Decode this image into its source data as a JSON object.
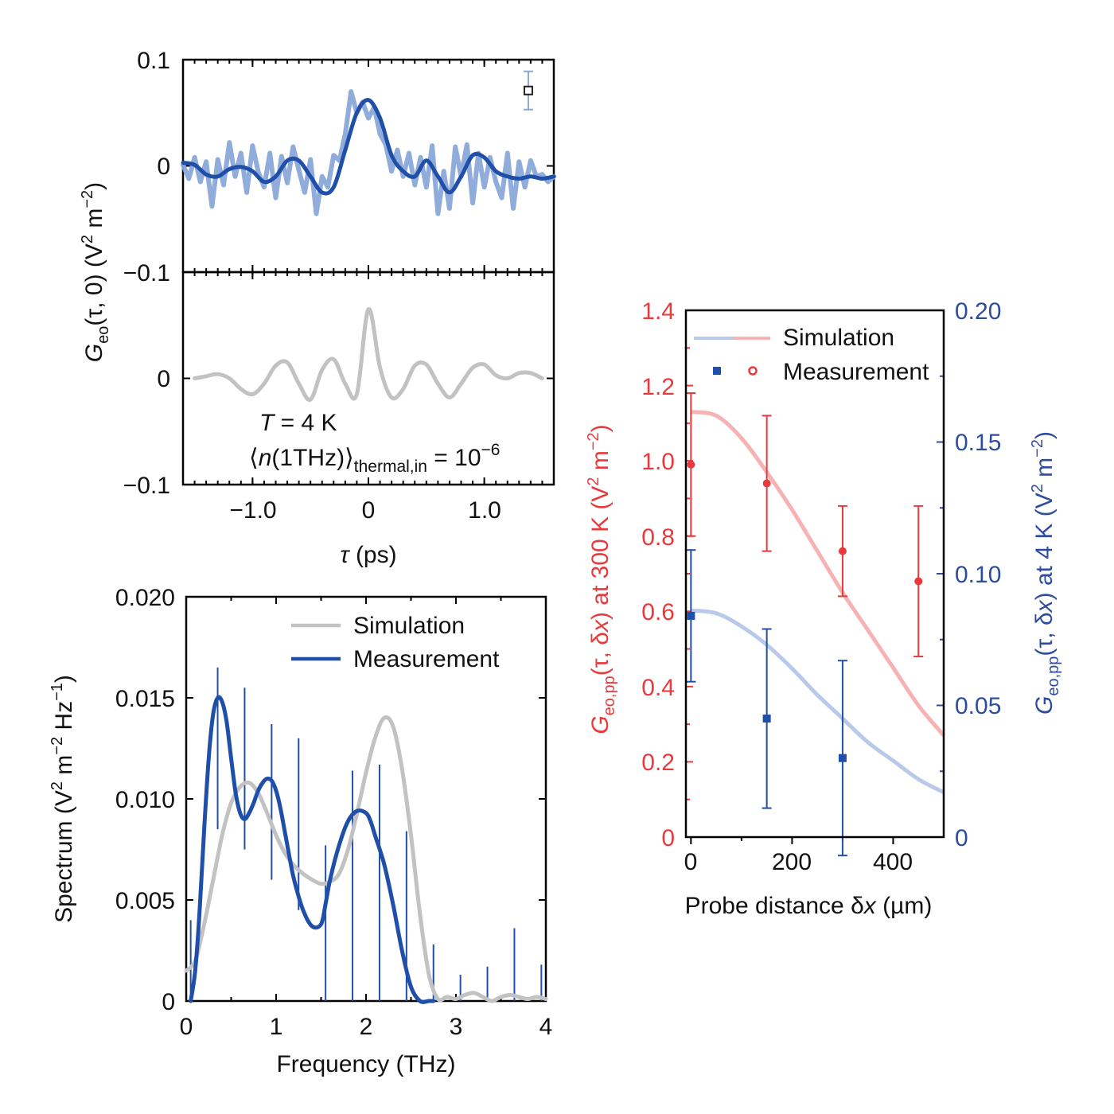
{
  "colors": {
    "meas_dark": "#1f4fa8",
    "meas_light": "#8aa8d8",
    "sim_gray": "#c2c2c2",
    "red": "#e8393d",
    "red_light": "#f7b3b4",
    "blue_light": "#b9c9ea",
    "axis": "#000000"
  },
  "chart_data": [
    {
      "id": "top",
      "type": "line",
      "ylabel_main": "G",
      "ylabel_sub": "eo",
      "ylabel_rest": "(τ, 0) (V",
      "ylabel_sup": "2",
      "ylabel_m": " m",
      "ylabel_msup": "−2",
      "ylabel_close": ")",
      "xlabel_tau": "τ",
      "xlabel_rest": " (ps)",
      "xlim": [
        -1.6,
        1.6
      ],
      "x_ticks": [
        "−1.0",
        "0",
        "1.0"
      ],
      "x_tick_values": [
        -1.0,
        0,
        1.0
      ],
      "panels": [
        {
          "ylim": [
            -0.1,
            0.1
          ],
          "y_ticks": [
            "0.1",
            "0"
          ],
          "y_tick_values": [
            0.1,
            0
          ],
          "series": [
            {
              "style": "noisy",
              "x": [
                -1.6,
                -1.55,
                -1.5,
                -1.45,
                -1.4,
                -1.35,
                -1.3,
                -1.25,
                -1.2,
                -1.15,
                -1.1,
                -1.05,
                -1.0,
                -0.95,
                -0.9,
                -0.85,
                -0.8,
                -0.75,
                -0.7,
                -0.65,
                -0.6,
                -0.55,
                -0.5,
                -0.45,
                -0.4,
                -0.35,
                -0.3,
                -0.25,
                -0.2,
                -0.15,
                -0.1,
                -0.05,
                0,
                0.05,
                0.1,
                0.15,
                0.2,
                0.25,
                0.3,
                0.35,
                0.4,
                0.45,
                0.5,
                0.55,
                0.6,
                0.65,
                0.7,
                0.75,
                0.8,
                0.85,
                0.9,
                0.95,
                1.0,
                1.05,
                1.1,
                1.15,
                1.2,
                1.25,
                1.3,
                1.35,
                1.4,
                1.45,
                1.5,
                1.55,
                1.6
              ],
              "y": [
                0.001,
                -0.012,
                0.008,
                -0.015,
                0.004,
                -0.038,
                0.006,
                -0.018,
                0.022,
                -0.01,
                0.012,
                -0.025,
                0.019,
                -0.006,
                -0.02,
                0.012,
                -0.03,
                0.009,
                -0.016,
                0.018,
                -0.004,
                -0.025,
                0.006,
                -0.045,
                -0.01,
                -0.02,
                0.01,
                0.005,
                0.03,
                0.07,
                0.05,
                0.06,
                0.045,
                0.055,
                0.03,
                0.02,
                -0.005,
                0.015,
                -0.01,
                0.012,
                -0.018,
                0.008,
                -0.02,
                0.019,
                -0.045,
                -0.005,
                -0.04,
                0.018,
                -0.01,
                0.02,
                -0.035,
                0.012,
                -0.02,
                0.008,
                -0.015,
                -0.03,
                0.012,
                -0.04,
                0.004,
                -0.02,
                0.005,
                -0.01,
                -0.008,
                -0.015,
                -0.01
              ]
            },
            {
              "style": "smooth",
              "x": [
                -1.6,
                -1.5,
                -1.4,
                -1.3,
                -1.2,
                -1.1,
                -1.0,
                -0.9,
                -0.8,
                -0.7,
                -0.6,
                -0.5,
                -0.4,
                -0.3,
                -0.2,
                -0.1,
                0,
                0.1,
                0.2,
                0.3,
                0.4,
                0.5,
                0.6,
                0.7,
                0.8,
                0.9,
                1.0,
                1.1,
                1.2,
                1.3,
                1.4,
                1.5,
                1.6
              ],
              "y": [
                0.003,
                0.001,
                -0.008,
                -0.01,
                -0.003,
                -0.001,
                -0.005,
                -0.015,
                -0.01,
                0.005,
                0.005,
                -0.01,
                -0.025,
                -0.02,
                0.015,
                0.05,
                0.062,
                0.045,
                0.01,
                -0.005,
                -0.01,
                0.005,
                -0.01,
                -0.025,
                -0.01,
                0.01,
                0.008,
                -0.005,
                -0.01,
                -0.012,
                -0.01,
                -0.012,
                -0.01
              ]
            },
            {
              "style": "errorbar",
              "x": [
                1.38
              ],
              "y": [
                0.071
              ],
              "err": [
                0.018
              ]
            }
          ]
        },
        {
          "ylim": [
            -0.1,
            0.1
          ],
          "y_ticks": [
            "0",
            "−0.1"
          ],
          "y_tick_values": [
            0,
            -0.1
          ],
          "series": [
            {
              "style": "sim",
              "x": [
                -1.5,
                -1.4,
                -1.3,
                -1.2,
                -1.1,
                -1.0,
                -0.9,
                -0.8,
                -0.7,
                -0.6,
                -0.5,
                -0.4,
                -0.3,
                -0.2,
                -0.1,
                0,
                0.1,
                0.2,
                0.3,
                0.4,
                0.5,
                0.6,
                0.7,
                0.8,
                0.9,
                1.0,
                1.1,
                1.2,
                1.3,
                1.4,
                1.5
              ],
              "y": [
                0,
                0.002,
                0.004,
                0,
                -0.01,
                -0.015,
                -0.005,
                0.012,
                0.015,
                -0.005,
                -0.02,
                0.008,
                0.018,
                -0.005,
                -0.015,
                0.065,
                0.01,
                -0.018,
                -0.01,
                0.012,
                0.013,
                -0.005,
                -0.018,
                -0.005,
                0.01,
                0.013,
                0.003,
                0,
                0.005,
                0.005,
                0
              ]
            }
          ],
          "annotations": {
            "t_italic": "T",
            "t_rest": " = 4 K",
            "n_open": "⟨",
            "n_italic": "n",
            "n_rest": "(1THz)⟩",
            "n_sub": "thermal,in",
            "n_eq": " = 10",
            "n_sup": "−6"
          }
        }
      ]
    },
    {
      "id": "spectrum",
      "type": "line",
      "xlabel": "Frequency (THz)",
      "ylabel_a": "Spectrum (V",
      "ylabel_sup1": "2",
      "ylabel_b": " m",
      "ylabel_sup2": "−2",
      "ylabel_c": " Hz",
      "ylabel_sup3": "−1",
      "ylabel_d": ")",
      "xlim": [
        0,
        4
      ],
      "ylim": [
        0,
        0.02
      ],
      "x_ticks": [
        "0",
        "1",
        "2",
        "3",
        "4"
      ],
      "x_tick_values": [
        0,
        1,
        2,
        3,
        4
      ],
      "y_ticks": [
        "0.020",
        "0.015",
        "0.010",
        "0.005",
        "0"
      ],
      "y_tick_values": [
        0.02,
        0.015,
        0.01,
        0.005,
        0
      ],
      "legend": [
        "Simulation",
        "Measurement"
      ],
      "series": [
        {
          "name": "Simulation",
          "style": "sim",
          "x": [
            0,
            0.1,
            0.2,
            0.3,
            0.4,
            0.5,
            0.6,
            0.7,
            0.8,
            0.9,
            1.0,
            1.1,
            1.2,
            1.3,
            1.4,
            1.5,
            1.6,
            1.7,
            1.8,
            1.9,
            2.0,
            2.1,
            2.2,
            2.3,
            2.4,
            2.5,
            2.6,
            2.7,
            2.8,
            2.9,
            3.0,
            3.1,
            3.2,
            3.3,
            3.4,
            3.5,
            3.6,
            3.7,
            3.8,
            3.9,
            4.0
          ],
          "y": [
            0.0015,
            0.002,
            0.0038,
            0.006,
            0.0082,
            0.0098,
            0.0106,
            0.0108,
            0.0103,
            0.0093,
            0.0082,
            0.0073,
            0.0067,
            0.0063,
            0.006,
            0.0058,
            0.0059,
            0.0063,
            0.0075,
            0.0093,
            0.0113,
            0.013,
            0.014,
            0.0136,
            0.0115,
            0.0082,
            0.0043,
            0.0013,
            0.0001,
            0.0002,
            0.0001,
            0.0003,
            0.0004,
            0.0002,
            0,
            0.0002,
            0.0003,
            0.0002,
            0.0001,
            0.0002,
            0.0001
          ]
        },
        {
          "name": "Measurement",
          "style": "smooth",
          "x": [
            0.05,
            0.1,
            0.15,
            0.2,
            0.25,
            0.3,
            0.35,
            0.4,
            0.45,
            0.5,
            0.55,
            0.6,
            0.65,
            0.7,
            0.75,
            0.8,
            0.85,
            0.9,
            0.95,
            1.0,
            1.05,
            1.1,
            1.15,
            1.2,
            1.3,
            1.4,
            1.5,
            1.55,
            1.6,
            1.7,
            1.8,
            1.9,
            2.0,
            2.05,
            2.1,
            2.2,
            2.3,
            2.4,
            2.5,
            2.6,
            2.7,
            2.75
          ],
          "y": [
            0,
            0.0015,
            0.0045,
            0.0085,
            0.012,
            0.0142,
            0.015,
            0.0148,
            0.0138,
            0.012,
            0.0103,
            0.0093,
            0.009,
            0.0093,
            0.0098,
            0.0104,
            0.0108,
            0.011,
            0.0109,
            0.0104,
            0.0095,
            0.0083,
            0.0071,
            0.006,
            0.0045,
            0.0037,
            0.0038,
            0.0048,
            0.006,
            0.0077,
            0.0089,
            0.0094,
            0.0093,
            0.0089,
            0.0082,
            0.0068,
            0.0048,
            0.0025,
            0.0007,
            0,
            0,
            0
          ]
        },
        {
          "name": "err",
          "style": "vbars",
          "x": [
            0.05,
            0.35,
            0.65,
            0.95,
            1.25,
            1.55,
            1.85,
            2.15,
            2.45,
            2.75,
            3.05,
            3.35,
            3.65,
            3.95
          ],
          "lo": [
            0,
            0.0085,
            0.0075,
            0.006,
            0.0045,
            0,
            0,
            0,
            0,
            0,
            0,
            0,
            0,
            0
          ],
          "hi": [
            0.004,
            0.0165,
            0.0155,
            0.0137,
            0.013,
            0.0077,
            0.0114,
            0.0117,
            0.0084,
            0.0028,
            0.0013,
            0.0017,
            0.0036,
            0.0018
          ]
        }
      ]
    },
    {
      "id": "probe",
      "type": "line",
      "xlabel_a": "Probe distance δ",
      "xlabel_x": "x",
      "xlabel_b": " (µm)",
      "yleft_label_G": "G",
      "yleft_label_sub": "eo,pp",
      "yleft_label_a": "(τ, δ",
      "yleft_label_x": "x",
      "yleft_label_b": ") at 300 K (V",
      "yleft_label_sup": "2",
      "yleft_label_c": " m",
      "yleft_label_sup2": "−2",
      "yleft_label_d": ")",
      "yright_label_G": "G",
      "yright_label_sub": "eo,pp",
      "yright_label_a": "(τ, δ",
      "yright_label_x": "x",
      "yright_label_b": ") at 4 K (V",
      "yright_label_sup": "2",
      "yright_label_c": " m",
      "yright_label_sup2": "−2",
      "yright_label_d": ")",
      "xlim": [
        -10,
        500
      ],
      "ylim_left": [
        0,
        1.4
      ],
      "ylim_right": [
        0,
        0.2
      ],
      "x_ticks": [
        "0",
        "200",
        "400"
      ],
      "x_tick_values": [
        0,
        200,
        400
      ],
      "y_left_ticks": [
        "1.4",
        "1.2",
        "1.0",
        "0.8",
        "0.6",
        "0.4",
        "0.2",
        "0"
      ],
      "y_left_tick_values": [
        1.4,
        1.2,
        1.0,
        0.8,
        0.6,
        0.4,
        0.2,
        0
      ],
      "y_right_ticks": [
        "0.20",
        "0.15",
        "0.10",
        "0.05",
        "0"
      ],
      "y_right_tick_values": [
        0.2,
        0.15,
        0.1,
        0.05,
        0
      ],
      "legend": [
        "Simulation",
        "Measurement"
      ],
      "series": [
        {
          "name": "sim_red",
          "axis": "left",
          "x": [
            0,
            50,
            100,
            150,
            200,
            250,
            300,
            350,
            400,
            450,
            500
          ],
          "y": [
            1.13,
            1.12,
            1.06,
            0.97,
            0.87,
            0.76,
            0.65,
            0.55,
            0.45,
            0.35,
            0.27
          ]
        },
        {
          "name": "sim_blue",
          "axis": "right",
          "x": [
            0,
            50,
            100,
            150,
            200,
            250,
            300,
            350,
            400,
            450,
            500
          ],
          "y": [
            0.086,
            0.085,
            0.08,
            0.073,
            0.064,
            0.054,
            0.045,
            0.036,
            0.029,
            0.022,
            0.017
          ]
        },
        {
          "name": "meas_red",
          "axis": "left",
          "x": [
            0,
            150,
            300,
            450
          ],
          "y": [
            0.99,
            0.94,
            0.76,
            0.68
          ],
          "err": [
            0.19,
            0.18,
            0.12,
            0.2
          ]
        },
        {
          "name": "meas_blue",
          "axis": "right",
          "x": [
            0,
            150,
            300
          ],
          "y": [
            0.084,
            0.045,
            0.03
          ],
          "err": [
            0.025,
            0.034,
            0.037
          ]
        }
      ]
    }
  ]
}
